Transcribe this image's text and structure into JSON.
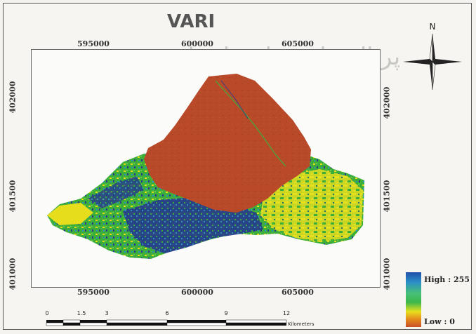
{
  "map": {
    "title": "VARI",
    "x_ticks_top": [
      "595000",
      "600000",
      "605000"
    ],
    "x_ticks_bottom": [
      "595000",
      "600000",
      "605000"
    ],
    "y_ticks_left": [
      "402000",
      "401500",
      "401000"
    ],
    "y_ticks_right": [
      "402000",
      "401500",
      "401000"
    ],
    "north_label": "N",
    "watermark_text": "پرتال جامع علوم انسانی"
  },
  "legend": {
    "high_label": "High : 255",
    "low_label": "Low : 0",
    "colors": [
      "#1f4fa8",
      "#47c07a",
      "#e8e01e",
      "#c8502a"
    ]
  },
  "scale": {
    "ticks": [
      "0",
      "1.5",
      "3",
      "6",
      "9",
      "12"
    ],
    "unit": "Kilometers"
  },
  "colors": {
    "background_red": "#b84a2a",
    "vegetation_green": "#3dae3a",
    "bright_yellow": "#e6de1c",
    "dark_blue": "#263a8e"
  }
}
